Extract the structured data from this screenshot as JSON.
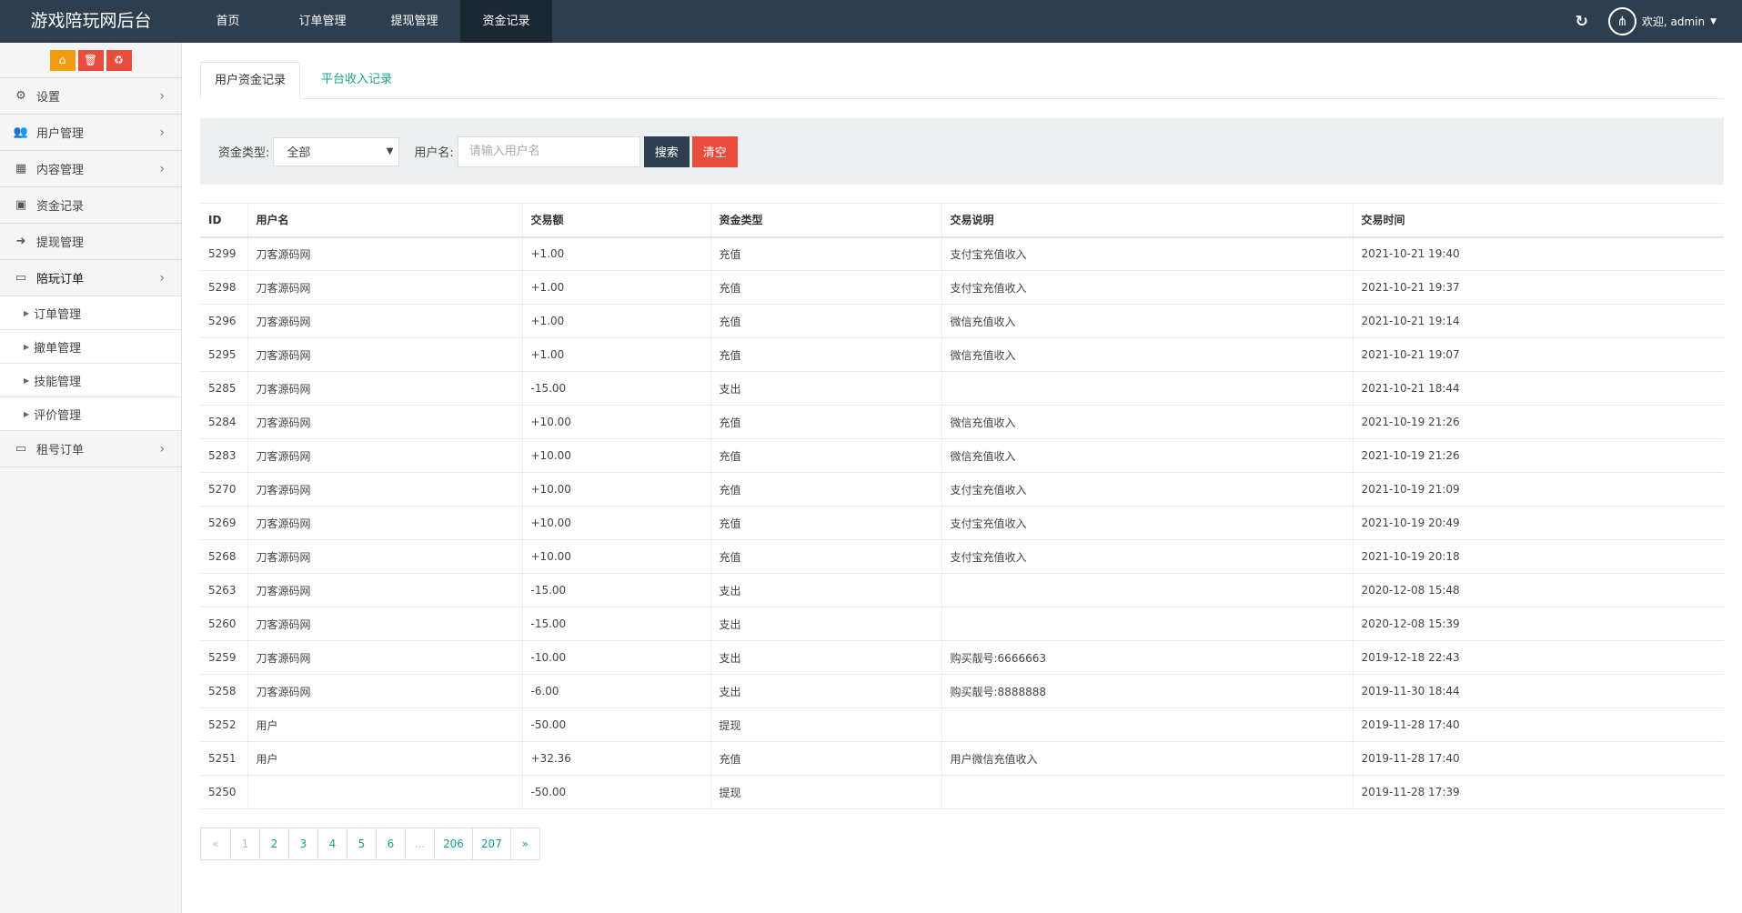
{
  "header": {
    "brand": "游戏陪玩网后台",
    "nav": [
      {
        "label": "首页"
      },
      {
        "label": "订单管理"
      },
      {
        "label": "提现管理"
      },
      {
        "label": "资金记录",
        "active": true
      }
    ],
    "refresh_icon": "↻",
    "welcome": "欢迎, admin"
  },
  "sidebar": {
    "tools": [
      {
        "icon": "home-icon",
        "glyph": "⌂",
        "color": "#f39c12"
      },
      {
        "icon": "trash-icon",
        "glyph": "🗑",
        "color": "#e74c3c"
      },
      {
        "icon": "recycle-icon",
        "glyph": "♻",
        "color": "#e74c3c"
      }
    ],
    "items": [
      {
        "label": "设置",
        "glyph": "⚙"
      },
      {
        "label": "用户管理",
        "glyph": "👥"
      },
      {
        "label": "内容管理",
        "glyph": "▦"
      },
      {
        "label": "资金记录",
        "glyph": "▣"
      },
      {
        "label": "提现管理",
        "glyph": "➜"
      },
      {
        "label": "陪玩订单",
        "glyph": "▭"
      }
    ],
    "sub_items": [
      {
        "label": "订单管理"
      },
      {
        "label": "撤单管理"
      },
      {
        "label": "技能管理"
      },
      {
        "label": "评价管理"
      }
    ],
    "last_item": {
      "label": "租号订单",
      "glyph": "▭"
    }
  },
  "tabs": [
    {
      "label": "用户资金记录"
    },
    {
      "label": "平台收入记录"
    }
  ],
  "filter": {
    "type_label": "资金类型:",
    "type_value": "全部",
    "user_label": "用户名:",
    "user_placeholder": "请输入用户名",
    "user_value": "",
    "search": "搜索",
    "clear": "清空",
    "search_color": "#2e3e4e",
    "clear_color": "#e74c3c"
  },
  "table": {
    "columns": [
      "ID",
      "用户名",
      "交易额",
      "资金类型",
      "交易说明",
      "交易时间"
    ],
    "rows": [
      [
        "5299",
        "刀客源码网",
        "+1.00",
        "充值",
        "支付宝充值收入",
        "2021-10-21 19:40"
      ],
      [
        "5298",
        "刀客源码网",
        "+1.00",
        "充值",
        "支付宝充值收入",
        "2021-10-21 19:37"
      ],
      [
        "5296",
        "刀客源码网",
        "+1.00",
        "充值",
        "微信充值收入",
        "2021-10-21 19:14"
      ],
      [
        "5295",
        "刀客源码网",
        "+1.00",
        "充值",
        "微信充值收入",
        "2021-10-21 19:07"
      ],
      [
        "5285",
        "刀客源码网",
        "-15.00",
        "支出",
        "",
        "2021-10-21 18:44"
      ],
      [
        "5284",
        "刀客源码网",
        "+10.00",
        "充值",
        "微信充值收入",
        "2021-10-19 21:26"
      ],
      [
        "5283",
        "刀客源码网",
        "+10.00",
        "充值",
        "微信充值收入",
        "2021-10-19 21:26"
      ],
      [
        "5270",
        "刀客源码网",
        "+10.00",
        "充值",
        "支付宝充值收入",
        "2021-10-19 21:09"
      ],
      [
        "5269",
        "刀客源码网",
        "+10.00",
        "充值",
        "支付宝充值收入",
        "2021-10-19 20:49"
      ],
      [
        "5268",
        "刀客源码网",
        "+10.00",
        "充值",
        "支付宝充值收入",
        "2021-10-19 20:18"
      ],
      [
        "5263",
        "刀客源码网",
        "-15.00",
        "支出",
        "",
        "2020-12-08 15:48"
      ],
      [
        "5260",
        "刀客源码网",
        "-15.00",
        "支出",
        "",
        "2020-12-08 15:39"
      ],
      [
        "5259",
        "刀客源码网",
        "-10.00",
        "支出",
        "购买靓号:6666663",
        "2019-12-18 22:43"
      ],
      [
        "5258",
        "刀客源码网",
        "-6.00",
        "支出",
        "购买靓号:8888888",
        "2019-11-30 18:44"
      ],
      [
        "5252",
        "用户",
        "-50.00",
        "提现",
        "",
        "2019-11-28 17:40"
      ],
      [
        "5251",
        "用户",
        "+32.36",
        "充值",
        "用户微信充值收入",
        "2019-11-28 17:40"
      ],
      [
        "5250",
        "",
        "-50.00",
        "提现",
        "",
        "2019-11-28 17:39"
      ]
    ]
  },
  "pagination": {
    "pages": [
      "«",
      "1",
      "2",
      "3",
      "4",
      "5",
      "6",
      "...",
      "206",
      "207",
      "»"
    ],
    "current": "1"
  }
}
